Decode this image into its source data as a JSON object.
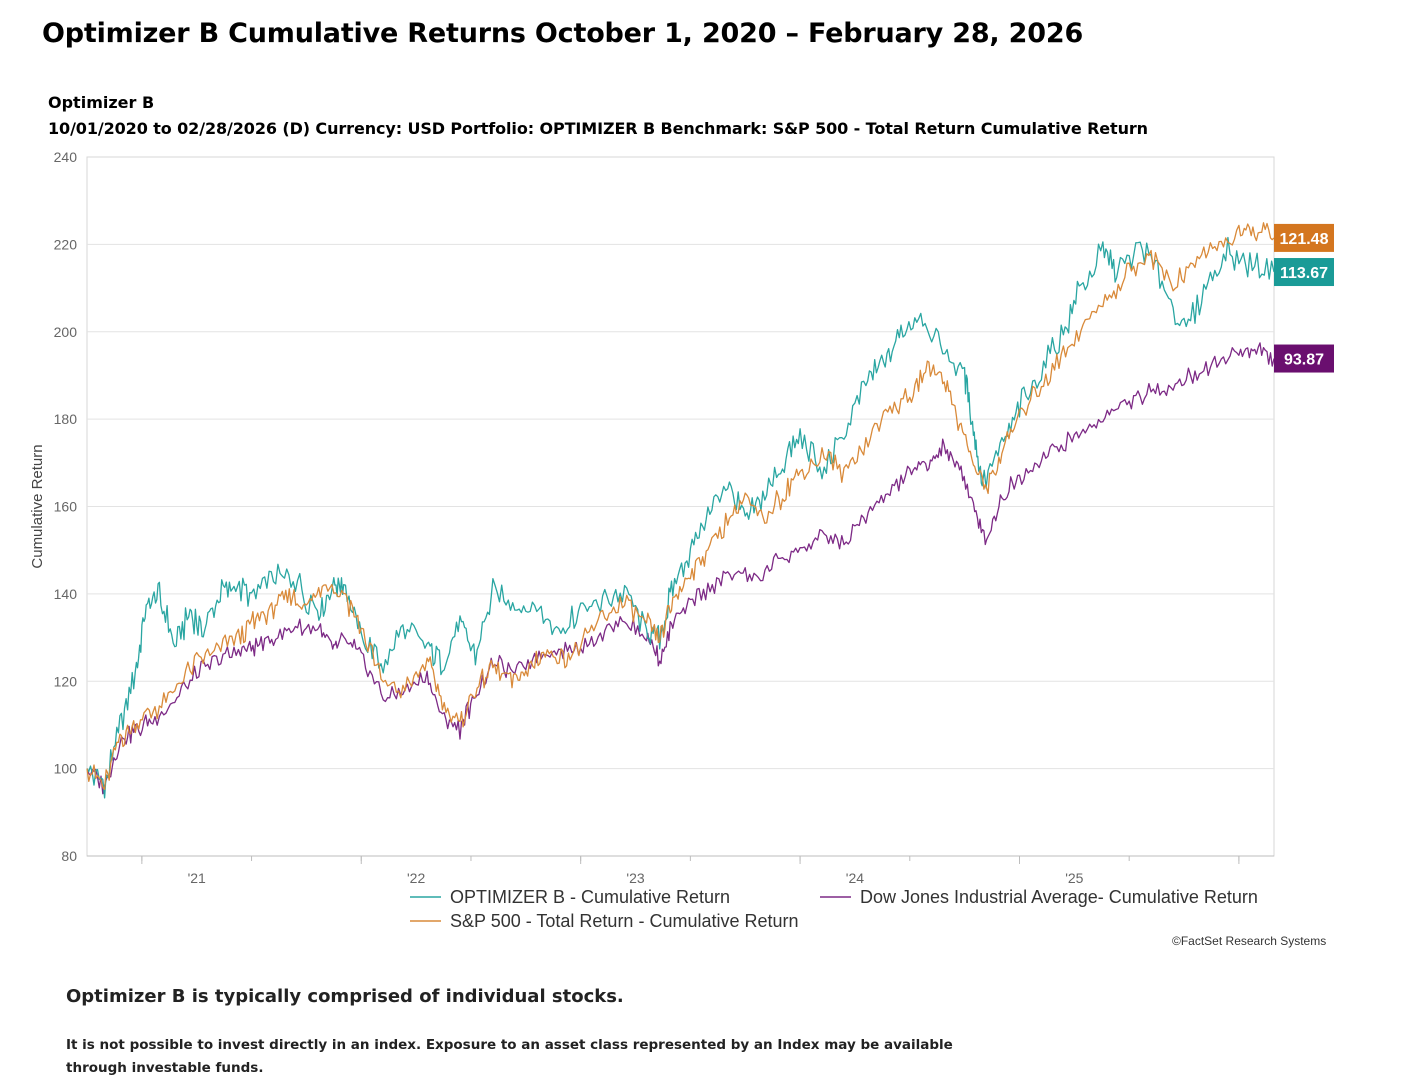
{
  "title": "Optimizer B Cumulative Returns October 1, 2020 – February 28, 2026",
  "subtitle_line1": "Optimizer B",
  "subtitle_line2": "10/01/2020 to 02/28/2026 (D) Currency:  USD Portfolio:  OPTIMIZER B Benchmark:  S&P 500 - Total Return Cumulative Return",
  "credit": "©FactSet Research Systems",
  "note_heading": "Optimizer B is typically comprised of individual stocks.",
  "note_disclaimer": "It is not possible to invest directly in an index. Exposure to an asset class represented by an Index may be available through investable funds.",
  "chart_data": {
    "type": "line",
    "title": "Optimizer B",
    "ylabel": "Cumulative Return",
    "xlabel": "",
    "ylim": [
      80,
      240
    ],
    "yticks": [
      80,
      100,
      120,
      140,
      160,
      180,
      200,
      220,
      240
    ],
    "xlim": [
      2020.75,
      2026.16
    ],
    "xticks": [
      {
        "label": "'21",
        "x": 2021.25
      },
      {
        "label": "'22",
        "x": 2022.25
      },
      {
        "label": "'23",
        "x": 2023.25
      },
      {
        "label": "'24",
        "x": 2024.25
      },
      {
        "label": "'25",
        "x": 2025.25
      }
    ],
    "grid": true,
    "legend_position": "bottom",
    "series": [
      {
        "name": "OPTIMIZER B - Cumulative Return",
        "color": "#2aa6a2",
        "end_label": "113.67",
        "label_color": "#1a9b97",
        "x": [
          2020.75,
          2020.83,
          2020.9,
          2020.97,
          2021.02,
          2021.08,
          2021.15,
          2021.22,
          2021.28,
          2021.35,
          2021.42,
          2021.5,
          2021.6,
          2021.7,
          2021.8,
          2021.87,
          2021.92,
          2022.0,
          2022.1,
          2022.2,
          2022.3,
          2022.37,
          2022.45,
          2022.52,
          2022.6,
          2022.7,
          2022.8,
          2022.9,
          2023.0,
          2023.1,
          2023.2,
          2023.3,
          2023.36,
          2023.42,
          2023.5,
          2023.58,
          2023.67,
          2023.75,
          2023.83,
          2023.92,
          2024.0,
          2024.1,
          2024.2,
          2024.3,
          2024.38,
          2024.46,
          2024.55,
          2024.65,
          2024.75,
          2024.79,
          2024.83,
          2024.92,
          2025.0,
          2025.1,
          2025.2,
          2025.28,
          2025.38,
          2025.45,
          2025.55,
          2025.65,
          2025.75,
          2025.85,
          2025.95,
          2026.05,
          2026.16
        ],
        "values": [
          100,
          96,
          110,
          122,
          137,
          140,
          128,
          136,
          131,
          140,
          142,
          139,
          144,
          143,
          136,
          142,
          143,
          130,
          124,
          132,
          128,
          124,
          133,
          126,
          140,
          138,
          136,
          132,
          136,
          138,
          141,
          131,
          129,
          142,
          150,
          158,
          165,
          157,
          162,
          170,
          176,
          168,
          177,
          188,
          193,
          200,
          204,
          196,
          190,
          178,
          165,
          174,
          183,
          191,
          200,
          210,
          218,
          214,
          220,
          212,
          200,
          210,
          218,
          215,
          213.67
        ]
      },
      {
        "name": "S&P 500 - Total Return - Cumulative Return",
        "color": "#d98a3a",
        "end_label": "121.48",
        "label_color": "#d4761f",
        "x": [
          2020.75,
          2020.83,
          2020.9,
          2020.97,
          2021.05,
          2021.15,
          2021.25,
          2021.35,
          2021.45,
          2021.52,
          2021.6,
          2021.68,
          2021.75,
          2021.83,
          2021.92,
          2022.0,
          2022.1,
          2022.2,
          2022.3,
          2022.37,
          2022.45,
          2022.52,
          2022.6,
          2022.68,
          2022.75,
          2022.83,
          2022.92,
          2023.0,
          2023.1,
          2023.2,
          2023.3,
          2023.36,
          2023.42,
          2023.5,
          2023.58,
          2023.67,
          2023.75,
          2023.83,
          2023.92,
          2024.0,
          2024.1,
          2024.2,
          2024.3,
          2024.4,
          2024.5,
          2024.58,
          2024.65,
          2024.72,
          2024.79,
          2024.85,
          2024.92,
          2025.0,
          2025.1,
          2025.2,
          2025.3,
          2025.4,
          2025.5,
          2025.6,
          2025.7,
          2025.8,
          2025.9,
          2026.0,
          2026.08,
          2026.16
        ],
        "values": [
          100,
          96,
          107,
          110,
          113,
          118,
          125,
          127,
          130,
          134,
          137,
          140,
          136,
          143,
          140,
          132,
          120,
          118,
          125,
          115,
          110,
          118,
          124,
          120,
          122,
          127,
          125,
          128,
          135,
          138,
          133,
          130,
          138,
          145,
          150,
          157,
          162,
          156,
          163,
          168,
          172,
          168,
          175,
          182,
          185,
          192,
          190,
          180,
          170,
          164,
          172,
          181,
          188,
          195,
          202,
          208,
          214,
          218,
          210,
          216,
          220,
          222,
          223,
          221.48
        ]
      },
      {
        "name": "Dow Jones Industrial Average- Cumulative Return",
        "color": "#7d2a86",
        "end_label": "93.87",
        "label_color": "#6a0f6f",
        "x": [
          2020.75,
          2020.83,
          2020.9,
          2020.97,
          2021.05,
          2021.15,
          2021.25,
          2021.35,
          2021.45,
          2021.52,
          2021.6,
          2021.7,
          2021.8,
          2021.87,
          2021.92,
          2022.0,
          2022.1,
          2022.2,
          2022.3,
          2022.37,
          2022.45,
          2022.52,
          2022.6,
          2022.7,
          2022.8,
          2022.9,
          2023.0,
          2023.1,
          2023.2,
          2023.3,
          2023.36,
          2023.42,
          2023.5,
          2023.6,
          2023.7,
          2023.8,
          2023.9,
          2024.0,
          2024.1,
          2024.2,
          2024.3,
          2024.4,
          2024.5,
          2024.58,
          2024.65,
          2024.72,
          2024.79,
          2024.85,
          2024.92,
          2025.0,
          2025.1,
          2025.2,
          2025.3,
          2025.4,
          2025.5,
          2025.6,
          2025.7,
          2025.8,
          2025.9,
          2026.0,
          2026.08,
          2026.16
        ],
        "values": [
          100,
          96,
          106,
          109,
          111,
          116,
          122,
          125,
          127,
          128,
          130,
          132,
          133,
          127,
          130,
          126,
          116,
          118,
          121,
          112,
          109,
          117,
          124,
          122,
          126,
          127,
          128,
          131,
          134,
          130,
          125,
          133,
          138,
          142,
          145,
          143,
          148,
          150,
          153,
          152,
          158,
          163,
          168,
          170,
          173,
          170,
          160,
          152,
          162,
          167,
          171,
          174,
          177,
          181,
          184,
          186,
          188,
          190,
          193,
          195,
          196,
          193.87
        ]
      }
    ]
  }
}
